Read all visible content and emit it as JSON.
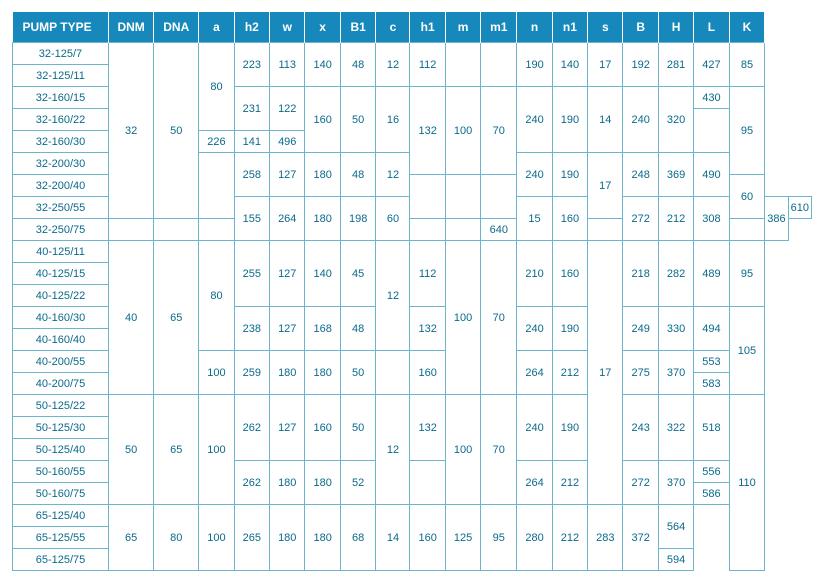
{
  "headers": [
    "PUMP TYPE",
    "DNM",
    "DNA",
    "a",
    "h2",
    "w",
    "x",
    "B1",
    "c",
    "h1",
    "m",
    "m1",
    "n",
    "n1",
    "s",
    "B",
    "H",
    "L",
    "K"
  ],
  "col_classes": [
    "c-pump",
    "c-wide",
    "c-wide",
    "c-std",
    "c-std",
    "c-std",
    "c-std",
    "c-std",
    "c-std",
    "c-std",
    "c-std",
    "c-std",
    "c-std",
    "c-std",
    "c-std",
    "c-std",
    "c-std",
    "c-std",
    "c-std"
  ],
  "cells": [
    [
      {
        "t": "32-125/7"
      },
      {
        "t": "32",
        "rs": 8
      },
      {
        "t": "50",
        "rs": 8
      },
      {
        "t": "80",
        "rs": 4
      },
      {
        "t": "223",
        "rs": 2
      },
      {
        "t": "113",
        "rs": 2
      },
      {
        "t": "140",
        "rs": 2
      },
      {
        "t": "48",
        "rs": 2
      },
      {
        "t": "12",
        "rs": 2
      },
      {
        "t": "112",
        "rs": 2
      },
      {
        "t": "",
        "rs": 2
      },
      {
        "t": "",
        "rs": 2
      },
      {
        "t": "190",
        "rs": 2
      },
      {
        "t": "140",
        "rs": 2
      },
      {
        "t": "17",
        "rs": 2
      },
      {
        "t": "192",
        "rs": 2
      },
      {
        "t": "281",
        "rs": 2
      },
      {
        "t": "427",
        "rs": 2
      },
      {
        "t": "85",
        "rs": 2
      }
    ],
    [
      {
        "t": "32-125/11"
      }
    ],
    [
      {
        "t": "32-160/15"
      },
      {
        "t": "231",
        "rs": 2
      },
      {
        "t": "122",
        "rs": 2
      },
      {
        "t": "160",
        "rs": 3
      },
      {
        "t": "50",
        "rs": 3
      },
      {
        "t": "16",
        "rs": 3
      },
      {
        "t": "132",
        "rs": 4
      },
      {
        "t": "100",
        "rs": 4
      },
      {
        "t": "70",
        "rs": 4
      },
      {
        "t": "240",
        "rs": 3
      },
      {
        "t": "190",
        "rs": 3
      },
      {
        "t": "14",
        "rs": 3
      },
      {
        "t": "240",
        "rs": 3
      },
      {
        "t": "320",
        "rs": 3
      },
      {
        "t": "430"
      },
      {
        "t": "95",
        "rs": 4
      }
    ],
    [
      {
        "t": "32-160/22"
      },
      {
        "t": "",
        "rs": 2
      }
    ],
    [
      {
        "t": "32-160/30"
      },
      {
        "t": "226"
      },
      {
        "t": "141"
      },
      {
        "t": "496"
      }
    ],
    [
      {
        "t": "32-200/30"
      },
      {
        "t": "",
        "rs": 3
      },
      {
        "t": "258",
        "rs": 2
      },
      {
        "t": "127",
        "rs": 2
      },
      {
        "t": "180",
        "rs": 2
      },
      {
        "t": "48",
        "rs": 2
      },
      {
        "t": "12",
        "rs": 2
      },
      {
        "t": "240",
        "rs": 2
      },
      {
        "t": "190",
        "rs": 2
      },
      {
        "t": "17",
        "rs": 3
      },
      {
        "t": "248",
        "rs": 2
      },
      {
        "t": "369",
        "rs": 2
      },
      {
        "t": "490",
        "rs": 2
      }
    ],
    [
      {
        "t": "32-200/40"
      },
      {
        "t": "",
        "rs": 2
      },
      {
        "t": "",
        "rs": 2
      },
      {
        "t": "",
        "rs": 2
      },
      {
        "t": "60",
        "rs": 2
      }
    ],
    [
      {
        "t": "32-250/55"
      },
      {
        "t": "155",
        "rs": 2
      },
      {
        "t": "264",
        "rs": 2
      },
      {
        "t": "180",
        "rs": 2
      },
      {
        "t": "198",
        "rs": 2
      },
      {
        "t": "60",
        "rs": 2
      },
      {
        "t": "15",
        "rs": 2
      },
      {
        "t": "160",
        "rs": 2
      },
      {
        "t": "272",
        "rs": 2
      },
      {
        "t": "212",
        "rs": 2
      },
      {
        "t": "308",
        "rs": 2
      },
      {
        "t": "386",
        "rs": 2
      },
      {
        "t": "610"
      }
    ],
    [
      {
        "t": "32-250/75"
      },
      {
        "t": ""
      },
      {
        "t": ""
      },
      {
        "t": ""
      },
      {
        "t": ""
      },
      {
        "t": ""
      },
      {
        "t": "640"
      },
      {
        "t": ""
      }
    ],
    [
      {
        "t": "40-125/11"
      },
      {
        "t": "40",
        "rs": 7
      },
      {
        "t": "65",
        "rs": 7
      },
      {
        "t": "80",
        "rs": 5
      },
      {
        "t": "255",
        "rs": 3
      },
      {
        "t": "127",
        "rs": 3
      },
      {
        "t": "140",
        "rs": 3
      },
      {
        "t": "45",
        "rs": 3
      },
      {
        "t": "12",
        "rs": 5
      },
      {
        "t": "112",
        "rs": 3
      },
      {
        "t": "100",
        "rs": 7
      },
      {
        "t": "70",
        "rs": 7
      },
      {
        "t": "210",
        "rs": 3
      },
      {
        "t": "160",
        "rs": 3
      },
      {
        "t": "17",
        "rs": 12
      },
      {
        "t": "218",
        "rs": 3
      },
      {
        "t": "282",
        "rs": 3
      },
      {
        "t": "489",
        "rs": 3
      },
      {
        "t": "95",
        "rs": 3
      }
    ],
    [
      {
        "t": "40-125/15"
      }
    ],
    [
      {
        "t": "40-125/22"
      }
    ],
    [
      {
        "t": "40-160/30"
      },
      {
        "t": "238",
        "rs": 2
      },
      {
        "t": "127",
        "rs": 2
      },
      {
        "t": "168",
        "rs": 2
      },
      {
        "t": "48",
        "rs": 2
      },
      {
        "t": "132",
        "rs": 2
      },
      {
        "t": "240",
        "rs": 2
      },
      {
        "t": "190",
        "rs": 2
      },
      {
        "t": "249",
        "rs": 2
      },
      {
        "t": "330",
        "rs": 2
      },
      {
        "t": "494",
        "rs": 2
      },
      {
        "t": "105",
        "rs": 4
      }
    ],
    [
      {
        "t": "40-160/40"
      }
    ],
    [
      {
        "t": "40-200/55"
      },
      {
        "t": "100",
        "rs": 2
      },
      {
        "t": "259",
        "rs": 2
      },
      {
        "t": "180",
        "rs": 2
      },
      {
        "t": "180",
        "rs": 2
      },
      {
        "t": "50",
        "rs": 2
      },
      {
        "t": "",
        "rs": 2
      },
      {
        "t": "160",
        "rs": 2
      },
      {
        "t": "264",
        "rs": 2
      },
      {
        "t": "212",
        "rs": 2
      },
      {
        "t": "275",
        "rs": 2
      },
      {
        "t": "370",
        "rs": 2
      },
      {
        "t": "553"
      }
    ],
    [
      {
        "t": "40-200/75"
      },
      {
        "t": "583"
      }
    ],
    [
      {
        "t": "50-125/22"
      },
      {
        "t": "50",
        "rs": 5
      },
      {
        "t": "65",
        "rs": 5
      },
      {
        "t": "100",
        "rs": 5
      },
      {
        "t": "262",
        "rs": 3
      },
      {
        "t": "127",
        "rs": 3
      },
      {
        "t": "160",
        "rs": 3
      },
      {
        "t": "50",
        "rs": 3
      },
      {
        "t": "12",
        "rs": 5
      },
      {
        "t": "132",
        "rs": 3
      },
      {
        "t": "100",
        "rs": 5
      },
      {
        "t": "70",
        "rs": 5
      },
      {
        "t": "240",
        "rs": 3
      },
      {
        "t": "190",
        "rs": 3
      },
      {
        "t": "243",
        "rs": 3
      },
      {
        "t": "322",
        "rs": 3
      },
      {
        "t": "518",
        "rs": 3
      },
      {
        "t": "110",
        "rs": 8
      }
    ],
    [
      {
        "t": "50-125/30"
      }
    ],
    [
      {
        "t": "50-125/40"
      }
    ],
    [
      {
        "t": "50-160/55"
      },
      {
        "t": "262",
        "rs": 2
      },
      {
        "t": "180",
        "rs": 2
      },
      {
        "t": "180",
        "rs": 2
      },
      {
        "t": "52",
        "rs": 2
      },
      {
        "t": "",
        "rs": 2
      },
      {
        "t": "264",
        "rs": 2
      },
      {
        "t": "212",
        "rs": 2
      },
      {
        "t": "272",
        "rs": 2
      },
      {
        "t": "370",
        "rs": 2
      },
      {
        "t": "556"
      }
    ],
    [
      {
        "t": "50-160/75"
      },
      {
        "t": "586"
      }
    ],
    [
      {
        "t": "65-125/40"
      },
      {
        "t": "65",
        "rs": 3
      },
      {
        "t": "80",
        "rs": 3
      },
      {
        "t": "100",
        "rs": 3
      },
      {
        "t": "265",
        "rs": 3
      },
      {
        "t": "180",
        "rs": 3
      },
      {
        "t": "180",
        "rs": 3
      },
      {
        "t": "68",
        "rs": 3
      },
      {
        "t": "14",
        "rs": 3
      },
      {
        "t": "160",
        "rs": 3
      },
      {
        "t": "125",
        "rs": 3
      },
      {
        "t": "95",
        "rs": 3
      },
      {
        "t": "280",
        "rs": 3
      },
      {
        "t": "212",
        "rs": 3
      },
      {
        "t": "283",
        "rs": 3
      },
      {
        "t": "372",
        "rs": 3
      },
      {
        "t": "564",
        "rs": 2
      }
    ],
    [
      {
        "t": "65-125/55"
      }
    ],
    [
      {
        "t": "65-125/75"
      },
      {
        "t": "594"
      }
    ]
  ]
}
